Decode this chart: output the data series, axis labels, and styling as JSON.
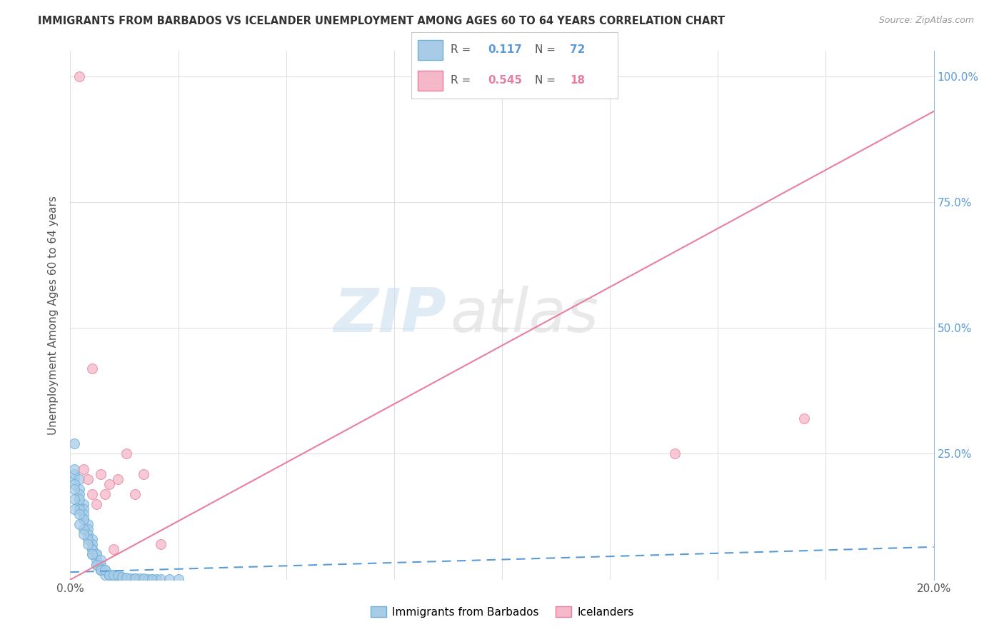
{
  "title": "IMMIGRANTS FROM BARBADOS VS ICELANDER UNEMPLOYMENT AMONG AGES 60 TO 64 YEARS CORRELATION CHART",
  "source": "Source: ZipAtlas.com",
  "ylabel": "Unemployment Among Ages 60 to 64 years",
  "watermark_zip": "ZIP",
  "watermark_atlas": "atlas",
  "xlim": [
    0.0,
    0.2
  ],
  "ylim": [
    0.0,
    1.05
  ],
  "color_blue": "#a8cce8",
  "color_blue_edge": "#6baed6",
  "color_blue_dark": "#5b9bd5",
  "color_pink": "#f4b8c8",
  "color_pink_edge": "#e87fa0",
  "color_pink_dark": "#e87fa0",
  "color_blue_text": "#5b9bd5",
  "color_pink_text": "#e87fa0",
  "barbados_x": [
    0.001,
    0.001,
    0.001,
    0.002,
    0.002,
    0.002,
    0.002,
    0.003,
    0.003,
    0.003,
    0.003,
    0.004,
    0.004,
    0.004,
    0.005,
    0.005,
    0.005,
    0.005,
    0.006,
    0.006,
    0.006,
    0.007,
    0.007,
    0.007,
    0.008,
    0.008,
    0.009,
    0.009,
    0.01,
    0.01,
    0.011,
    0.012,
    0.013,
    0.014,
    0.015,
    0.016,
    0.017,
    0.018,
    0.019,
    0.02,
    0.001,
    0.001,
    0.002,
    0.002,
    0.003,
    0.003,
    0.004,
    0.005,
    0.006,
    0.007,
    0.001,
    0.001,
    0.001,
    0.002,
    0.002,
    0.003,
    0.004,
    0.005,
    0.006,
    0.007,
    0.008,
    0.009,
    0.01,
    0.011,
    0.012,
    0.013,
    0.015,
    0.017,
    0.019,
    0.021,
    0.023,
    0.025
  ],
  "barbados_y": [
    0.27,
    0.2,
    0.21,
    0.2,
    0.18,
    0.17,
    0.15,
    0.15,
    0.14,
    0.13,
    0.12,
    0.11,
    0.1,
    0.09,
    0.08,
    0.07,
    0.06,
    0.05,
    0.05,
    0.04,
    0.03,
    0.03,
    0.02,
    0.02,
    0.02,
    0.01,
    0.01,
    0.01,
    0.01,
    0.005,
    0.005,
    0.004,
    0.003,
    0.003,
    0.002,
    0.002,
    0.001,
    0.001,
    0.001,
    0.001,
    0.22,
    0.19,
    0.16,
    0.14,
    0.12,
    0.1,
    0.08,
    0.06,
    0.05,
    0.04,
    0.18,
    0.16,
    0.14,
    0.13,
    0.11,
    0.09,
    0.07,
    0.05,
    0.03,
    0.02,
    0.02,
    0.01,
    0.01,
    0.01,
    0.005,
    0.004,
    0.003,
    0.002,
    0.001,
    0.001,
    0.001,
    0.001
  ],
  "icelander_x": [
    0.002,
    0.003,
    0.004,
    0.005,
    0.005,
    0.006,
    0.007,
    0.008,
    0.009,
    0.01,
    0.011,
    0.013,
    0.015,
    0.017,
    0.021,
    0.12,
    0.14,
    0.17
  ],
  "icelander_y": [
    1.0,
    0.22,
    0.2,
    0.17,
    0.42,
    0.15,
    0.21,
    0.17,
    0.19,
    0.06,
    0.2,
    0.25,
    0.17,
    0.21,
    0.07,
    1.0,
    0.25,
    0.32
  ],
  "barbados_trend_x": [
    0.0,
    0.2
  ],
  "barbados_trend_y": [
    0.015,
    0.065
  ],
  "icelander_trend_x": [
    0.0,
    0.2
  ],
  "icelander_trend_y": [
    0.0,
    0.93
  ],
  "background_color": "#ffffff",
  "grid_color": "#e0e0e0"
}
